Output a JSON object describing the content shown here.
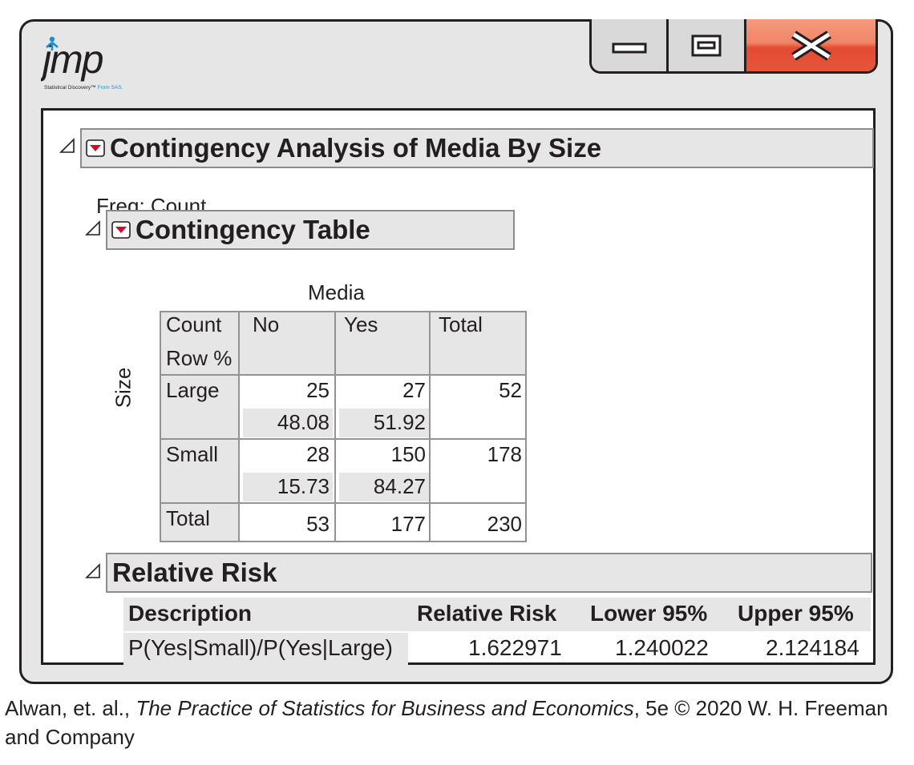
{
  "window": {
    "logo_text": "jmp",
    "logo_tagline": "Statistical Discovery™ From SAS.",
    "controls": [
      "minimize",
      "maximize",
      "close"
    ]
  },
  "report": {
    "title": "Contingency Analysis of Media By Size",
    "freq_label": "Freq: Count",
    "contingency_table": {
      "title": "Contingency Table",
      "column_variable": "Media",
      "row_variable": "Size",
      "legend": [
        "Count",
        "Row %"
      ],
      "columns": [
        "No",
        "Yes",
        "Total"
      ],
      "rows": [
        {
          "label": "Large",
          "counts": [
            "25",
            "27",
            "52"
          ],
          "row_pct": [
            "48.08",
            "51.92"
          ]
        },
        {
          "label": "Small",
          "counts": [
            "28",
            "150",
            "178"
          ],
          "row_pct": [
            "15.73",
            "84.27"
          ]
        }
      ],
      "total_row": {
        "label": "Total",
        "counts": [
          "53",
          "177",
          "230"
        ]
      }
    },
    "relative_risk": {
      "title": "Relative Risk",
      "headers": [
        "Description",
        "Relative Risk",
        "Lower 95%",
        "Upper 95%"
      ],
      "row": [
        "P(Yes|Small)/P(Yes|Large)",
        "1.622971",
        "1.240022",
        "2.124184"
      ]
    }
  },
  "caption": {
    "prefix": "Alwan, et. al., ",
    "book_title": "The Practice of Statistics for Business and Economics",
    "suffix": ", 5e © 2020 W. H. Freeman and Company"
  },
  "colors": {
    "panel_gray": "#e6e6e7",
    "close_red": "#e5553a",
    "menu_arrow_red": "#c8102e",
    "logo_blue": "#1f8fd0"
  }
}
